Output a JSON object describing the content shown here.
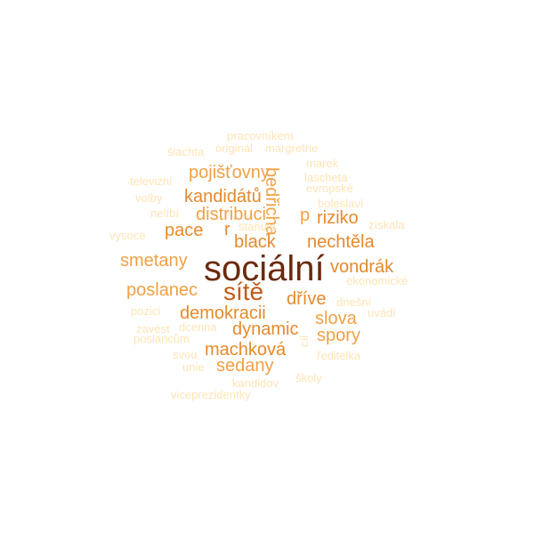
{
  "palette": {
    "c1": "#fde5b5",
    "c2": "#f2a044",
    "c3": "#e58a2c",
    "c4": "#c25a16",
    "c5": "#6b2a0c"
  },
  "words": [
    {
      "text": "sociální",
      "color": "c5"
    },
    {
      "text": "sítě",
      "color": "c4"
    },
    {
      "text": "vondrák",
      "color": "c3"
    },
    {
      "text": "bedřicha",
      "color": "c2"
    },
    {
      "text": "nechtěla",
      "color": "c3"
    },
    {
      "text": "dříve",
      "color": "c3"
    },
    {
      "text": "black",
      "color": "c3"
    },
    {
      "text": "distribuci",
      "color": "c2"
    },
    {
      "text": "kandidátů",
      "color": "c3"
    },
    {
      "text": "pojišťovny",
      "color": "c2"
    },
    {
      "text": "pace",
      "color": "c3"
    },
    {
      "text": "r",
      "color": "c3"
    },
    {
      "text": "p",
      "color": "c2"
    },
    {
      "text": "riziko",
      "color": "c3"
    },
    {
      "text": "smetany",
      "color": "c2"
    },
    {
      "text": "poslanec",
      "color": "c2"
    },
    {
      "text": "demokracii",
      "color": "c3"
    },
    {
      "text": "dynamic",
      "color": "c3"
    },
    {
      "text": "slova",
      "color": "c2"
    },
    {
      "text": "spory",
      "color": "c2"
    },
    {
      "text": "machková",
      "color": "c3"
    },
    {
      "text": "sedany",
      "color": "c2"
    },
    {
      "text": "pracovníkem",
      "color": "c1"
    },
    {
      "text": "originál",
      "color": "c1"
    },
    {
      "text": "margrethe",
      "color": "c1"
    },
    {
      "text": "šlachta",
      "color": "c1"
    },
    {
      "text": "marek",
      "color": "c1"
    },
    {
      "text": "televizní",
      "color": "c1"
    },
    {
      "text": "lascheta",
      "color": "c1"
    },
    {
      "text": "evropské",
      "color": "c1"
    },
    {
      "text": "volby",
      "color": "c1"
    },
    {
      "text": "boleslaví",
      "color": "c1"
    },
    {
      "text": "nelíbí",
      "color": "c1"
    },
    {
      "text": "získala",
      "color": "c1"
    },
    {
      "text": "vysoce",
      "color": "c1"
    },
    {
      "text": "stanula",
      "color": "c1"
    },
    {
      "text": "ekonomické",
      "color": "c1"
    },
    {
      "text": "dnešní",
      "color": "c1"
    },
    {
      "text": "pozici",
      "color": "c1"
    },
    {
      "text": "uvádí",
      "color": "c1"
    },
    {
      "text": "zavést",
      "color": "c1"
    },
    {
      "text": "dcerina",
      "color": "c1"
    },
    {
      "text": "poslancům",
      "color": "c1"
    },
    {
      "text": "svou",
      "color": "c1"
    },
    {
      "text": "cíl",
      "color": "c1"
    },
    {
      "text": "ředitelka",
      "color": "c1"
    },
    {
      "text": "unie",
      "color": "c1"
    },
    {
      "text": "školy",
      "color": "c1"
    },
    {
      "text": "kandidov",
      "color": "c1"
    },
    {
      "text": "viceprezidentky",
      "color": "c1"
    }
  ]
}
